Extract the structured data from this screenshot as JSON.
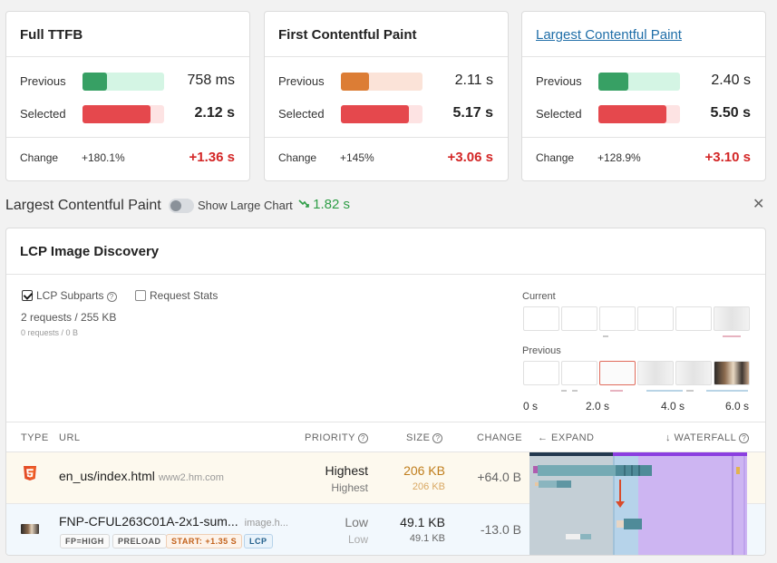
{
  "metrics": [
    {
      "title": "Full TTFB",
      "is_link": false,
      "prev_label": "Previous",
      "prev_value": "758 ms",
      "prev_fraction": 0.3,
      "prev_color": "#37a064",
      "prev_track": "#d4f5e4",
      "sel_label": "Selected",
      "sel_value": "2.12 s",
      "sel_fraction": 0.84,
      "sel_color": "#e5484d",
      "sel_track": "#fde3e3",
      "change_label": "Change",
      "change_pct": "+180.1%",
      "change_delta": "+1.36 s"
    },
    {
      "title": "First Contentful Paint",
      "is_link": false,
      "prev_label": "Previous",
      "prev_value": "2.11 s",
      "prev_fraction": 0.35,
      "prev_color": "#dc7d35",
      "prev_track": "#fbe3d8",
      "sel_label": "Selected",
      "sel_value": "5.17 s",
      "sel_fraction": 0.84,
      "sel_color": "#e5484d",
      "sel_track": "#fde3e3",
      "change_label": "Change",
      "change_pct": "+145%",
      "change_delta": "+3.06 s"
    },
    {
      "title": "Largest Contentful Paint",
      "is_link": true,
      "prev_label": "Previous",
      "prev_value": "2.40 s",
      "prev_fraction": 0.37,
      "prev_color": "#37a064",
      "prev_track": "#d4f5e4",
      "sel_label": "Selected",
      "sel_value": "5.50 s",
      "sel_fraction": 0.84,
      "sel_color": "#e5484d",
      "sel_track": "#fde3e3",
      "change_label": "Change",
      "change_pct": "+128.9%",
      "change_delta": "+3.10 s"
    }
  ],
  "section": {
    "title": "Largest Contentful Paint",
    "toggle_label": "Show Large Chart",
    "trend_icon": "trend-down-icon",
    "trend_value": "1.82 s"
  },
  "panel": {
    "title": "LCP Image Discovery",
    "opt_subparts": "LCP Subparts",
    "opt_subparts_checked": true,
    "opt_stats": "Request Stats",
    "opt_stats_checked": false,
    "requests": "2 requests / 255 KB",
    "requests_sub": "0 requests / 0 B",
    "filmstrip": {
      "current_label": "Current",
      "previous_label": "Previous",
      "axis": [
        "0 s",
        "2.0 s",
        "4.0 s",
        "6.0 s"
      ]
    },
    "table": {
      "headers": {
        "type": "TYPE",
        "url": "URL",
        "priority": "PRIORITY",
        "size": "SIZE",
        "change": "CHANGE",
        "expand": "← EXPAND",
        "waterfall": "↓ WATERFALL"
      },
      "rows": [
        {
          "icon": "html5-icon",
          "url": "en_us/index.html",
          "host": "www2.hm.com",
          "priority": "Highest",
          "priority_prev": "Highest",
          "size": "206 KB",
          "size_prev": "206 KB",
          "change": "+64.0 B"
        },
        {
          "icon": "image-thumbnail-icon",
          "url": "FNP-CFUL263C01A-2x1-sum...",
          "host": "image.h...",
          "priority": "Low",
          "priority_prev": "Low",
          "size": "49.1 KB",
          "size_prev": "49.1 KB",
          "change": "-13.0 B",
          "tags": [
            "FP=HIGH",
            "PRELOAD",
            "START: +1.35 S",
            "LCP"
          ]
        }
      ]
    }
  },
  "colors": {
    "bad": "#d32626",
    "good": "#2e9d46",
    "link": "#1f6ea8",
    "waterfall_purple": "#cdb5f2",
    "waterfall_teal": "#6fa9b5"
  }
}
